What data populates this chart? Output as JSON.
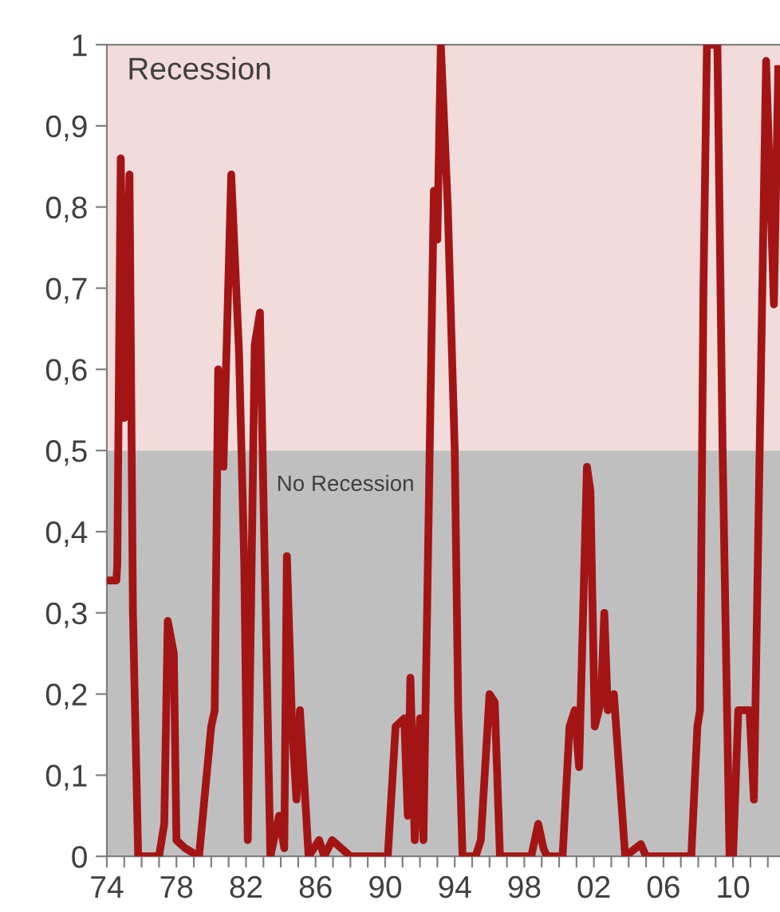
{
  "chart_data": {
    "type": "line",
    "x": [
      1974.0,
      1974.55,
      1974.6,
      1974.8,
      1975.0,
      1975.3,
      1975.5,
      1975.8,
      1977.0,
      1977.3,
      1977.5,
      1977.85,
      1978.0,
      1978.5,
      1979.3,
      1980.0,
      1980.2,
      1980.4,
      1980.7,
      1981.15,
      1981.6,
      1981.9,
      1982.1,
      1982.5,
      1982.8,
      1983.4,
      1983.9,
      1984.2,
      1984.35,
      1984.65,
      1984.9,
      1985.1,
      1985.6,
      1986.2,
      1986.5,
      1986.95,
      1988.0,
      1990.15,
      1990.6,
      1991.1,
      1991.3,
      1991.45,
      1991.7,
      1992.0,
      1992.2,
      1992.8,
      1993.0,
      1993.2,
      1993.6,
      1994.0,
      1994.2,
      1994.45,
      1995.2,
      1995.5,
      1996.0,
      1996.3,
      1996.6,
      1998.4,
      1998.8,
      1999.1,
      1999.3,
      2000.2,
      2000.6,
      2000.9,
      2001.15,
      2001.6,
      2001.8,
      2002.05,
      2002.4,
      2002.6,
      2002.8,
      2003.15,
      2003.8,
      2004.7,
      2005.0,
      2007.6,
      2007.95,
      2008.1,
      2008.3,
      2008.5,
      2009.1,
      2009.4,
      2009.8,
      2010.0,
      2010.3,
      2010.95,
      2011.2,
      2011.9,
      2012.35,
      2012.6
    ],
    "series": [
      {
        "color": "#a31515",
        "values": [
          0.34,
          0.34,
          0.36,
          0.86,
          0.54,
          0.84,
          0.3,
          0,
          0,
          0.04,
          0.29,
          0.25,
          0.02,
          0.01,
          0,
          0.16,
          0.18,
          0.6,
          0.48,
          0.84,
          0.62,
          0.36,
          0.02,
          0.63,
          0.67,
          0,
          0.05,
          0.01,
          0.37,
          0.16,
          0.07,
          0.18,
          0,
          0.02,
          0,
          0.02,
          0,
          0,
          0.16,
          0.17,
          0.05,
          0.22,
          0.02,
          0.17,
          0.02,
          0.82,
          0.76,
          1.0,
          0.8,
          0.5,
          0.18,
          0,
          0,
          0.02,
          0.2,
          0.19,
          0,
          0,
          0.04,
          0.01,
          0,
          0,
          0.16,
          0.18,
          0.11,
          0.48,
          0.45,
          0.16,
          0.19,
          0.3,
          0.18,
          0.2,
          0,
          0.015,
          0,
          0,
          0.16,
          0.18,
          0.7,
          1.0,
          1.0,
          0.5,
          0,
          0,
          0.18,
          0.18,
          0.07,
          0.98,
          0.68,
          0.97
        ]
      }
    ],
    "xlim": [
      1974,
      2012.7
    ],
    "xticks": [
      {
        "value": 1974,
        "label": "74"
      },
      {
        "value": 1975,
        "label": null
      },
      {
        "value": 1976,
        "label": null
      },
      {
        "value": 1977,
        "label": null
      },
      {
        "value": 1978,
        "label": "78"
      },
      {
        "value": 1979,
        "label": null
      },
      {
        "value": 1980,
        "label": null
      },
      {
        "value": 1981,
        "label": null
      },
      {
        "value": 1982,
        "label": "82"
      },
      {
        "value": 1983,
        "label": null
      },
      {
        "value": 1984,
        "label": null
      },
      {
        "value": 1985,
        "label": null
      },
      {
        "value": 1986,
        "label": "86"
      },
      {
        "value": 1987,
        "label": null
      },
      {
        "value": 1988,
        "label": null
      },
      {
        "value": 1989,
        "label": null
      },
      {
        "value": 1990,
        "label": "90"
      },
      {
        "value": 1991,
        "label": null
      },
      {
        "value": 1992,
        "label": null
      },
      {
        "value": 1993,
        "label": null
      },
      {
        "value": 1994,
        "label": "94"
      },
      {
        "value": 1995,
        "label": null
      },
      {
        "value": 1996,
        "label": null
      },
      {
        "value": 1997,
        "label": null
      },
      {
        "value": 1998,
        "label": "98"
      },
      {
        "value": 1999,
        "label": null
      },
      {
        "value": 2000,
        "label": null
      },
      {
        "value": 2001,
        "label": null
      },
      {
        "value": 2002,
        "label": "02"
      },
      {
        "value": 2003,
        "label": null
      },
      {
        "value": 2004,
        "label": null
      },
      {
        "value": 2005,
        "label": null
      },
      {
        "value": 2006,
        "label": "06"
      },
      {
        "value": 2007,
        "label": null
      },
      {
        "value": 2008,
        "label": null
      },
      {
        "value": 2009,
        "label": null
      },
      {
        "value": 2010,
        "label": "10"
      },
      {
        "value": 2011,
        "label": null
      },
      {
        "value": 2012,
        "label": null
      }
    ],
    "ylim": [
      0,
      1
    ],
    "yticks": [
      0,
      {
        "value": 0.1,
        "label": "0,1"
      },
      {
        "value": 0.2,
        "label": "0,2"
      },
      {
        "value": 0.3,
        "label": "0,3"
      },
      {
        "value": 0.4,
        "label": "0,4"
      },
      {
        "value": 0.5,
        "label": "0,5"
      },
      {
        "value": 0.6,
        "label": "0,6"
      },
      {
        "value": 0.7,
        "label": "0,7"
      },
      {
        "value": 0.8,
        "label": "0,8"
      },
      {
        "value": 0.9,
        "label": "0,9"
      },
      1
    ],
    "bands": [
      {
        "axis": "y",
        "from": 0.5,
        "to": 1,
        "label": "Recession",
        "color": "#f2dcdb"
      },
      {
        "axis": "y",
        "from": 0,
        "to": 0.5,
        "label": "No Recession",
        "color": "#bfbfbf"
      }
    ],
    "grid": false,
    "legend": false,
    "marker": "none",
    "line_style": "solid"
  }
}
